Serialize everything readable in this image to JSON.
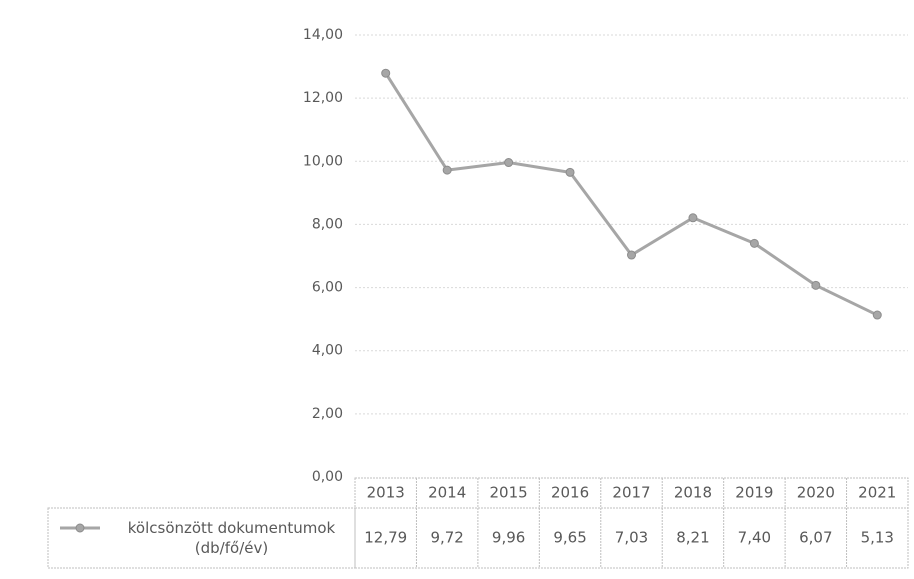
{
  "chart_data": {
    "type": "line",
    "categories": [
      "2013",
      "2014",
      "2015",
      "2016",
      "2017",
      "2018",
      "2019",
      "2020",
      "2021"
    ],
    "series": [
      {
        "name": "kölcsönzött dokumentumok (db/fő/év)",
        "color": "#a6a6a6",
        "values": [
          12.79,
          9.72,
          9.96,
          9.65,
          7.03,
          8.21,
          7.4,
          6.07,
          5.13
        ],
        "value_labels": [
          "12,79",
          "9,72",
          "9,96",
          "9,65",
          "7,03",
          "8,21",
          "7,40",
          "6,07",
          "5,13"
        ]
      }
    ],
    "ylim": [
      0,
      14
    ],
    "yticks": [
      {
        "value": 0,
        "label": "0,00"
      },
      {
        "value": 2,
        "label": "2,00"
      },
      {
        "value": 4,
        "label": "4,00"
      },
      {
        "value": 6,
        "label": "6,00"
      },
      {
        "value": 8,
        "label": "8,00"
      },
      {
        "value": 10,
        "label": "10,00"
      },
      {
        "value": 12,
        "label": "12,00"
      },
      {
        "value": 14,
        "label": "14,00"
      }
    ],
    "grid": true
  }
}
